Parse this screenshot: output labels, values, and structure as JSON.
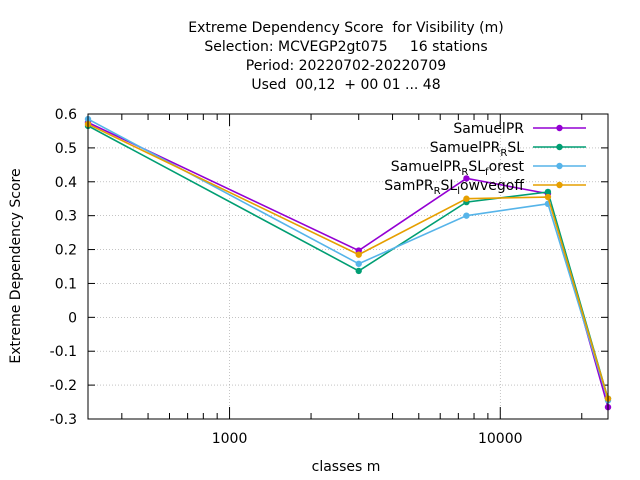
{
  "chart_data": {
    "type": "line",
    "title_lines": [
      "Extreme Dependency Score  for Visibility (m)",
      "Selection: MCVEGP2gt075     16 stations",
      "Period: 20220702-20220709",
      "Used  00,12  + 00 01 ... 48"
    ],
    "xlabel": "classes m",
    "ylabel": "Extreme Dependency Score",
    "xscale": "log",
    "xlim": [
      300,
      25000
    ],
    "ylim": [
      -0.3,
      0.6
    ],
    "grid": true,
    "legend_position": "top-right",
    "x_ticks": [
      {
        "value": 1000,
        "label": "1000"
      },
      {
        "value": 10000,
        "label": "10000"
      }
    ],
    "y_ticks": [
      {
        "value": -0.3,
        "label": "-0.3"
      },
      {
        "value": -0.2,
        "label": "-0.2"
      },
      {
        "value": -0.1,
        "label": "-0.1"
      },
      {
        "value": 0,
        "label": "0"
      },
      {
        "value": 0.1,
        "label": "0.1"
      },
      {
        "value": 0.2,
        "label": "0.2"
      },
      {
        "value": 0.3,
        "label": "0.3"
      },
      {
        "value": 0.4,
        "label": "0.4"
      },
      {
        "value": 0.5,
        "label": "0.5"
      },
      {
        "value": 0.6,
        "label": "0.6"
      }
    ],
    "x": [
      300,
      3000,
      7500,
      15000,
      25000
    ],
    "series": [
      {
        "name": "SamuelPR",
        "label_parts": [
          [
            "SamuelPR",
            ""
          ]
        ],
        "color": "#9400d3",
        "values": [
          0.575,
          0.197,
          0.41,
          0.365,
          -0.265
        ]
      },
      {
        "name": "SamuelPR_RSL",
        "label_parts": [
          [
            "SamuelPR",
            ""
          ],
          [
            "R",
            "sub"
          ],
          [
            "SL",
            ""
          ]
        ],
        "color": "#009e73",
        "values": [
          0.565,
          0.137,
          0.34,
          0.37,
          -0.24
        ]
      },
      {
        "name": "SamuelPR_RSL_forest",
        "label_parts": [
          [
            "SamuelPR",
            ""
          ],
          [
            "R",
            "sub"
          ],
          [
            "SL",
            ""
          ],
          [
            "f",
            "sub"
          ],
          [
            "orest",
            ""
          ]
        ],
        "color": "#56b4e9",
        "values": [
          0.585,
          0.158,
          0.3,
          0.335,
          -0.245
        ]
      },
      {
        "name": "SamPR_RSL_lowvegoff",
        "label_parts": [
          [
            "SamPR",
            ""
          ],
          [
            "R",
            "sub"
          ],
          [
            "SL",
            ""
          ],
          [
            "l",
            "sub"
          ],
          [
            "owvegoff",
            ""
          ]
        ],
        "color": "#e69f00",
        "values": [
          0.57,
          0.185,
          0.35,
          0.355,
          -0.24
        ]
      }
    ]
  }
}
